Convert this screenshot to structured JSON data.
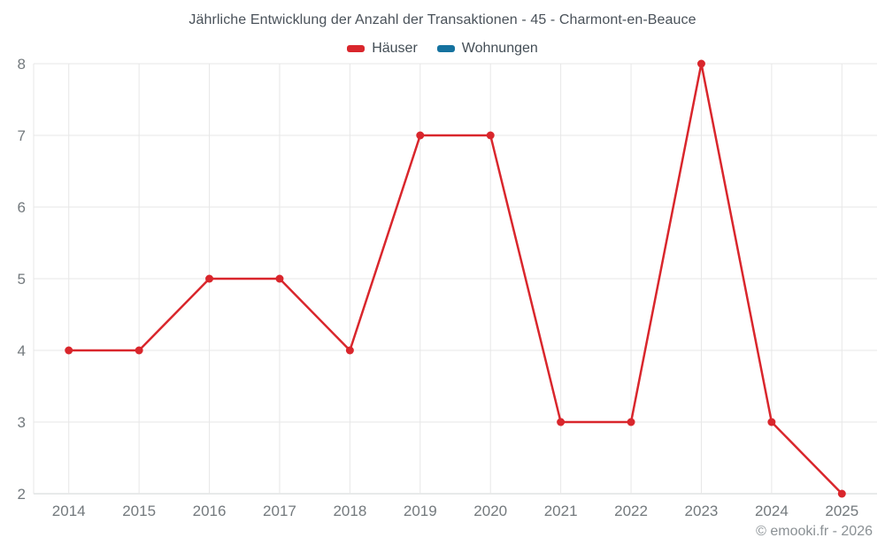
{
  "title": "Jährliche Entwicklung der Anzahl der Transaktionen - 45 - Charmont-en-Beauce",
  "legend": {
    "items": [
      {
        "label": "Häuser",
        "color": "#d9262c"
      },
      {
        "label": "Wohnungen",
        "color": "#15729f"
      }
    ]
  },
  "footer": "© emooki.fr - 2026",
  "colors": {
    "background": "#ffffff",
    "series_red": "#d9262c",
    "series_blue": "#15729f",
    "grid": "#e7e7e7",
    "axis_line": "#d0d4d6",
    "axis_text": "#73797d",
    "title_text": "#4a525a",
    "footer_text": "#8a9094"
  },
  "chart_data": {
    "type": "line",
    "title": "Jährliche Entwicklung der Anzahl der Transaktionen - 45 - Charmont-en-Beauce",
    "categories": [
      "2014",
      "2015",
      "2016",
      "2017",
      "2018",
      "2019",
      "2020",
      "2021",
      "2022",
      "2023",
      "2024",
      "2025"
    ],
    "series": [
      {
        "name": "Häuser",
        "color": "#d9262c",
        "values": [
          4,
          4,
          5,
          5,
          4,
          7,
          7,
          3,
          3,
          8,
          3,
          2
        ]
      },
      {
        "name": "Wohnungen",
        "color": "#15729f",
        "values": []
      }
    ],
    "xlabel": "",
    "ylabel": "",
    "ylim": [
      2,
      8
    ],
    "yticks": [
      2,
      3,
      4,
      5,
      6,
      7,
      8
    ],
    "grid": true,
    "legend_position": "top",
    "marker": "circle"
  }
}
